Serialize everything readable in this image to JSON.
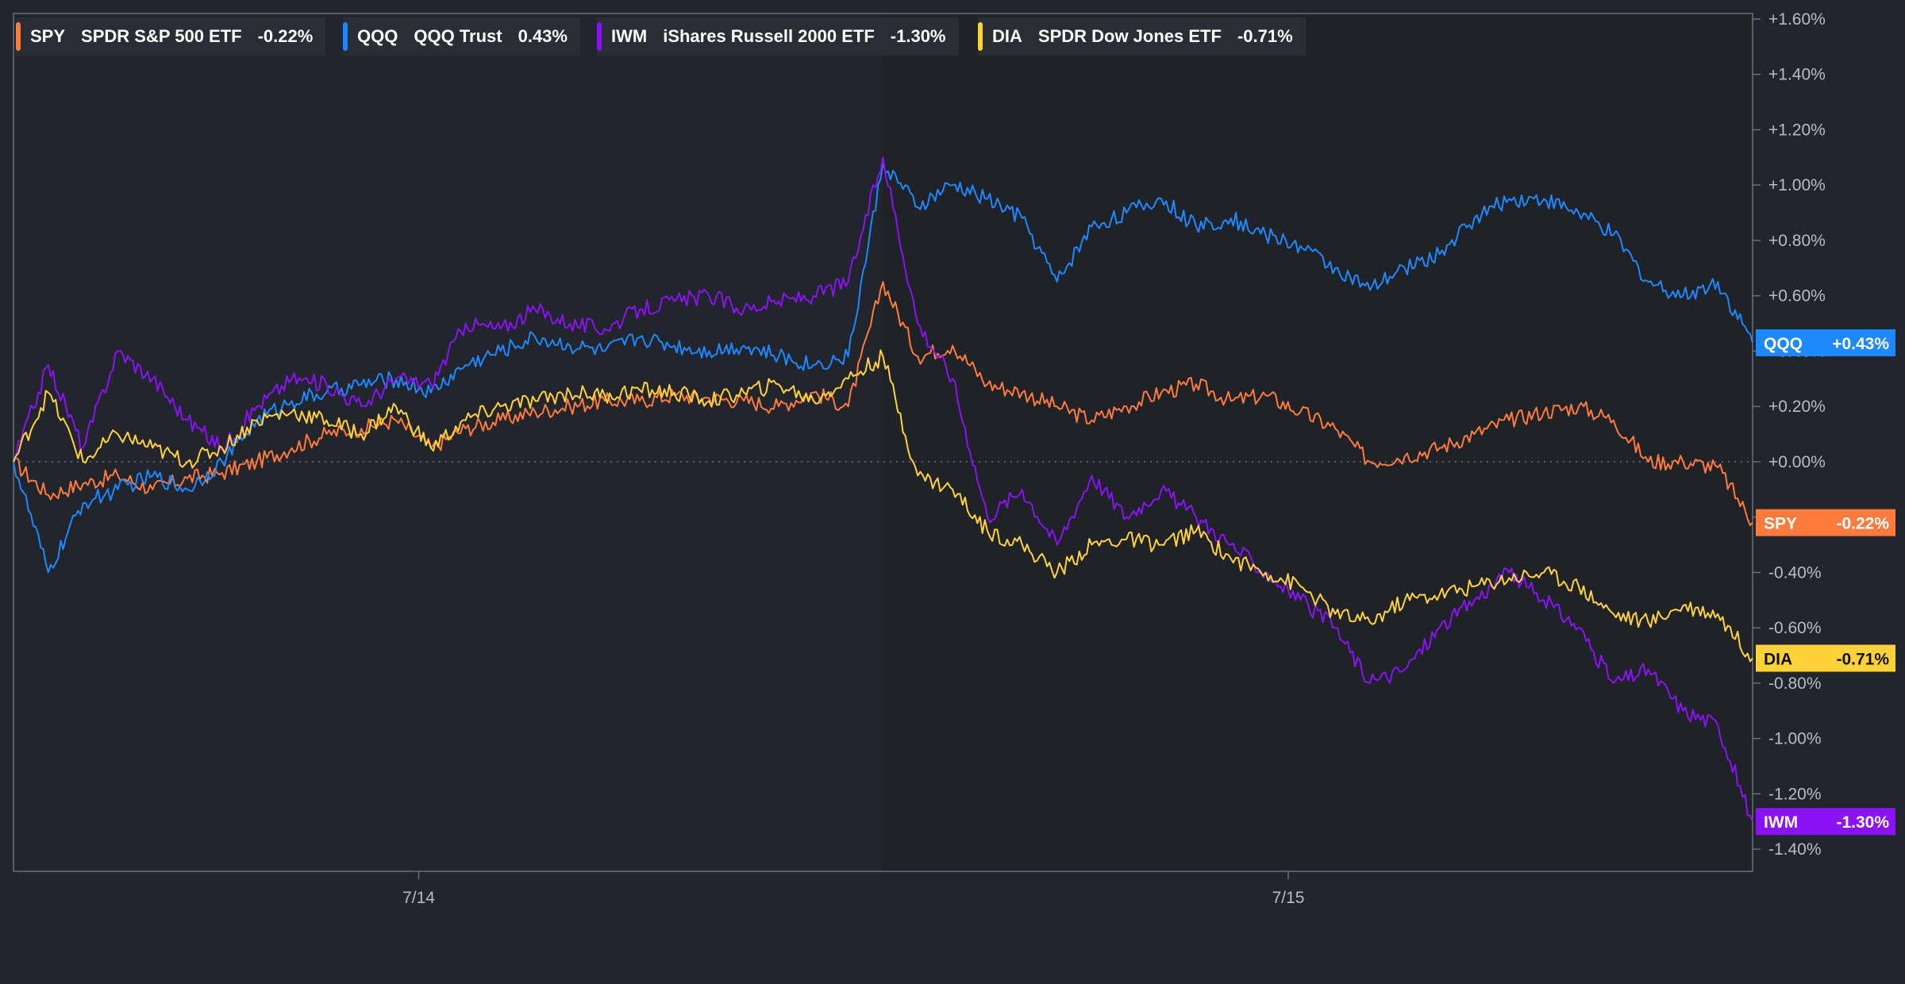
{
  "legend": [
    {
      "symbol": "SPY",
      "name": "SPDR S&P 500 ETF",
      "change": "-0.22%",
      "color": "#ff7a3d"
    },
    {
      "symbol": "QQQ",
      "name": "QQQ Trust",
      "change": "0.43%",
      "color": "#1e88ff"
    },
    {
      "symbol": "IWM",
      "name": "iShares Russell 2000 ETF",
      "change": "-1.30%",
      "color": "#8a12f5"
    },
    {
      "symbol": "DIA",
      "name": "SPDR Dow Jones ETF",
      "change": "-0.71%",
      "color": "#ffd23a"
    }
  ],
  "chart_data": {
    "type": "line",
    "xlabel": "",
    "ylabel": "",
    "ylim": [
      -1.48,
      1.62
    ],
    "y_ticks": [
      1.6,
      1.4,
      1.2,
      1.0,
      0.8,
      0.6,
      0.4,
      0.2,
      0.0,
      -0.2,
      -0.4,
      -0.6,
      -0.8,
      -1.0,
      -1.2,
      -1.4
    ],
    "y_tick_labels": [
      "+1.60%",
      "+1.40%",
      "+1.20%",
      "+1.00%",
      "+0.80%",
      "+0.60%",
      "+0.40%",
      "+0.20%",
      "+0.00%",
      "-0.20%",
      "-0.40%",
      "-0.60%",
      "-0.80%",
      "-1.00%",
      "-1.20%",
      "-1.40%"
    ],
    "x_tick_labels": [
      "7/14",
      "7/15"
    ],
    "x_tick_positions": [
      0.233,
      0.733
    ],
    "session_break": 0.5,
    "zero_line": 0.0,
    "end_labels": [
      {
        "symbol": "QQQ",
        "text": "+0.43%",
        "value": 0.43,
        "color": "#1e88ff"
      },
      {
        "symbol": "SPY",
        "text": "-0.22%",
        "value": -0.22,
        "color": "#ff7a3d"
      },
      {
        "symbol": "DIA",
        "text": "-0.71%",
        "value": -0.71,
        "color": "#ffd23a"
      },
      {
        "symbol": "IWM",
        "text": "-1.30%",
        "value": -1.3,
        "color": "#8a12f5"
      }
    ],
    "series": [
      {
        "name": "SPY",
        "color": "#ff7a3d",
        "x": [
          0,
          0.02,
          0.04,
          0.06,
          0.08,
          0.1,
          0.12,
          0.14,
          0.16,
          0.18,
          0.2,
          0.22,
          0.24,
          0.26,
          0.28,
          0.3,
          0.32,
          0.34,
          0.36,
          0.38,
          0.4,
          0.42,
          0.44,
          0.46,
          0.48,
          0.5,
          0.52,
          0.54,
          0.56,
          0.58,
          0.6,
          0.62,
          0.64,
          0.66,
          0.68,
          0.7,
          0.72,
          0.74,
          0.76,
          0.78,
          0.8,
          0.82,
          0.84,
          0.86,
          0.88,
          0.9,
          0.92,
          0.94,
          0.96,
          0.98,
          1.0
        ],
        "values": [
          0.0,
          -0.12,
          -0.08,
          -0.05,
          -0.1,
          -0.06,
          -0.04,
          0.0,
          0.05,
          0.1,
          0.12,
          0.15,
          0.05,
          0.12,
          0.15,
          0.18,
          0.2,
          0.22,
          0.22,
          0.24,
          0.23,
          0.22,
          0.2,
          0.25,
          0.2,
          0.65,
          0.38,
          0.42,
          0.28,
          0.25,
          0.2,
          0.15,
          0.2,
          0.25,
          0.28,
          0.22,
          0.24,
          0.18,
          0.12,
          0.0,
          0.02,
          0.05,
          0.1,
          0.15,
          0.18,
          0.2,
          0.15,
          0.0,
          0.0,
          -0.02,
          -0.22
        ]
      },
      {
        "name": "QQQ",
        "color": "#1e88ff",
        "x": [
          0,
          0.02,
          0.04,
          0.06,
          0.08,
          0.1,
          0.12,
          0.14,
          0.16,
          0.18,
          0.2,
          0.22,
          0.24,
          0.26,
          0.28,
          0.3,
          0.32,
          0.34,
          0.36,
          0.38,
          0.4,
          0.42,
          0.44,
          0.46,
          0.48,
          0.5,
          0.52,
          0.54,
          0.56,
          0.58,
          0.6,
          0.62,
          0.64,
          0.66,
          0.68,
          0.7,
          0.72,
          0.74,
          0.76,
          0.78,
          0.8,
          0.82,
          0.84,
          0.86,
          0.88,
          0.9,
          0.92,
          0.94,
          0.96,
          0.98,
          1.0
        ],
        "values": [
          0.0,
          -0.4,
          -0.15,
          -0.1,
          -0.05,
          -0.1,
          0.0,
          0.15,
          0.22,
          0.25,
          0.28,
          0.3,
          0.25,
          0.35,
          0.4,
          0.45,
          0.42,
          0.4,
          0.45,
          0.42,
          0.4,
          0.42,
          0.38,
          0.35,
          0.38,
          1.08,
          0.92,
          1.0,
          0.95,
          0.88,
          0.65,
          0.85,
          0.9,
          0.95,
          0.85,
          0.88,
          0.82,
          0.78,
          0.7,
          0.62,
          0.7,
          0.75,
          0.88,
          0.95,
          0.95,
          0.9,
          0.82,
          0.65,
          0.6,
          0.65,
          0.43
        ]
      },
      {
        "name": "IWM",
        "color": "#8a12f5",
        "x": [
          0,
          0.02,
          0.04,
          0.06,
          0.08,
          0.1,
          0.12,
          0.14,
          0.16,
          0.18,
          0.2,
          0.22,
          0.24,
          0.26,
          0.28,
          0.3,
          0.32,
          0.34,
          0.36,
          0.38,
          0.4,
          0.42,
          0.44,
          0.46,
          0.48,
          0.5,
          0.52,
          0.54,
          0.56,
          0.58,
          0.6,
          0.62,
          0.64,
          0.66,
          0.68,
          0.7,
          0.72,
          0.74,
          0.76,
          0.78,
          0.8,
          0.82,
          0.84,
          0.86,
          0.88,
          0.9,
          0.92,
          0.94,
          0.96,
          0.98,
          1.0
        ],
        "values": [
          0.0,
          0.35,
          0.05,
          0.4,
          0.3,
          0.15,
          0.05,
          0.2,
          0.3,
          0.28,
          0.2,
          0.3,
          0.28,
          0.5,
          0.48,
          0.55,
          0.5,
          0.48,
          0.55,
          0.58,
          0.6,
          0.55,
          0.58,
          0.6,
          0.65,
          1.1,
          0.5,
          0.3,
          -0.2,
          -0.1,
          -0.3,
          -0.05,
          -0.2,
          -0.1,
          -0.2,
          -0.3,
          -0.4,
          -0.5,
          -0.6,
          -0.8,
          -0.75,
          -0.6,
          -0.5,
          -0.4,
          -0.5,
          -0.6,
          -0.8,
          -0.75,
          -0.9,
          -0.95,
          -1.3
        ]
      },
      {
        "name": "DIA",
        "color": "#ffd23a",
        "x": [
          0,
          0.02,
          0.04,
          0.06,
          0.08,
          0.1,
          0.12,
          0.14,
          0.16,
          0.18,
          0.2,
          0.22,
          0.24,
          0.26,
          0.28,
          0.3,
          0.32,
          0.34,
          0.36,
          0.38,
          0.4,
          0.42,
          0.44,
          0.46,
          0.48,
          0.5,
          0.52,
          0.54,
          0.56,
          0.58,
          0.6,
          0.62,
          0.64,
          0.66,
          0.68,
          0.7,
          0.72,
          0.74,
          0.76,
          0.78,
          0.8,
          0.82,
          0.84,
          0.86,
          0.88,
          0.9,
          0.92,
          0.94,
          0.96,
          0.98,
          1.0
        ],
        "values": [
          0.0,
          0.25,
          0.0,
          0.1,
          0.05,
          0.0,
          0.05,
          0.15,
          0.18,
          0.15,
          0.1,
          0.2,
          0.05,
          0.15,
          0.2,
          0.22,
          0.25,
          0.24,
          0.26,
          0.25,
          0.22,
          0.25,
          0.28,
          0.22,
          0.3,
          0.38,
          -0.05,
          -0.1,
          -0.25,
          -0.3,
          -0.4,
          -0.3,
          -0.28,
          -0.3,
          -0.25,
          -0.35,
          -0.4,
          -0.45,
          -0.55,
          -0.58,
          -0.5,
          -0.48,
          -0.45,
          -0.42,
          -0.4,
          -0.45,
          -0.55,
          -0.58,
          -0.52,
          -0.55,
          -0.71
        ]
      }
    ]
  }
}
